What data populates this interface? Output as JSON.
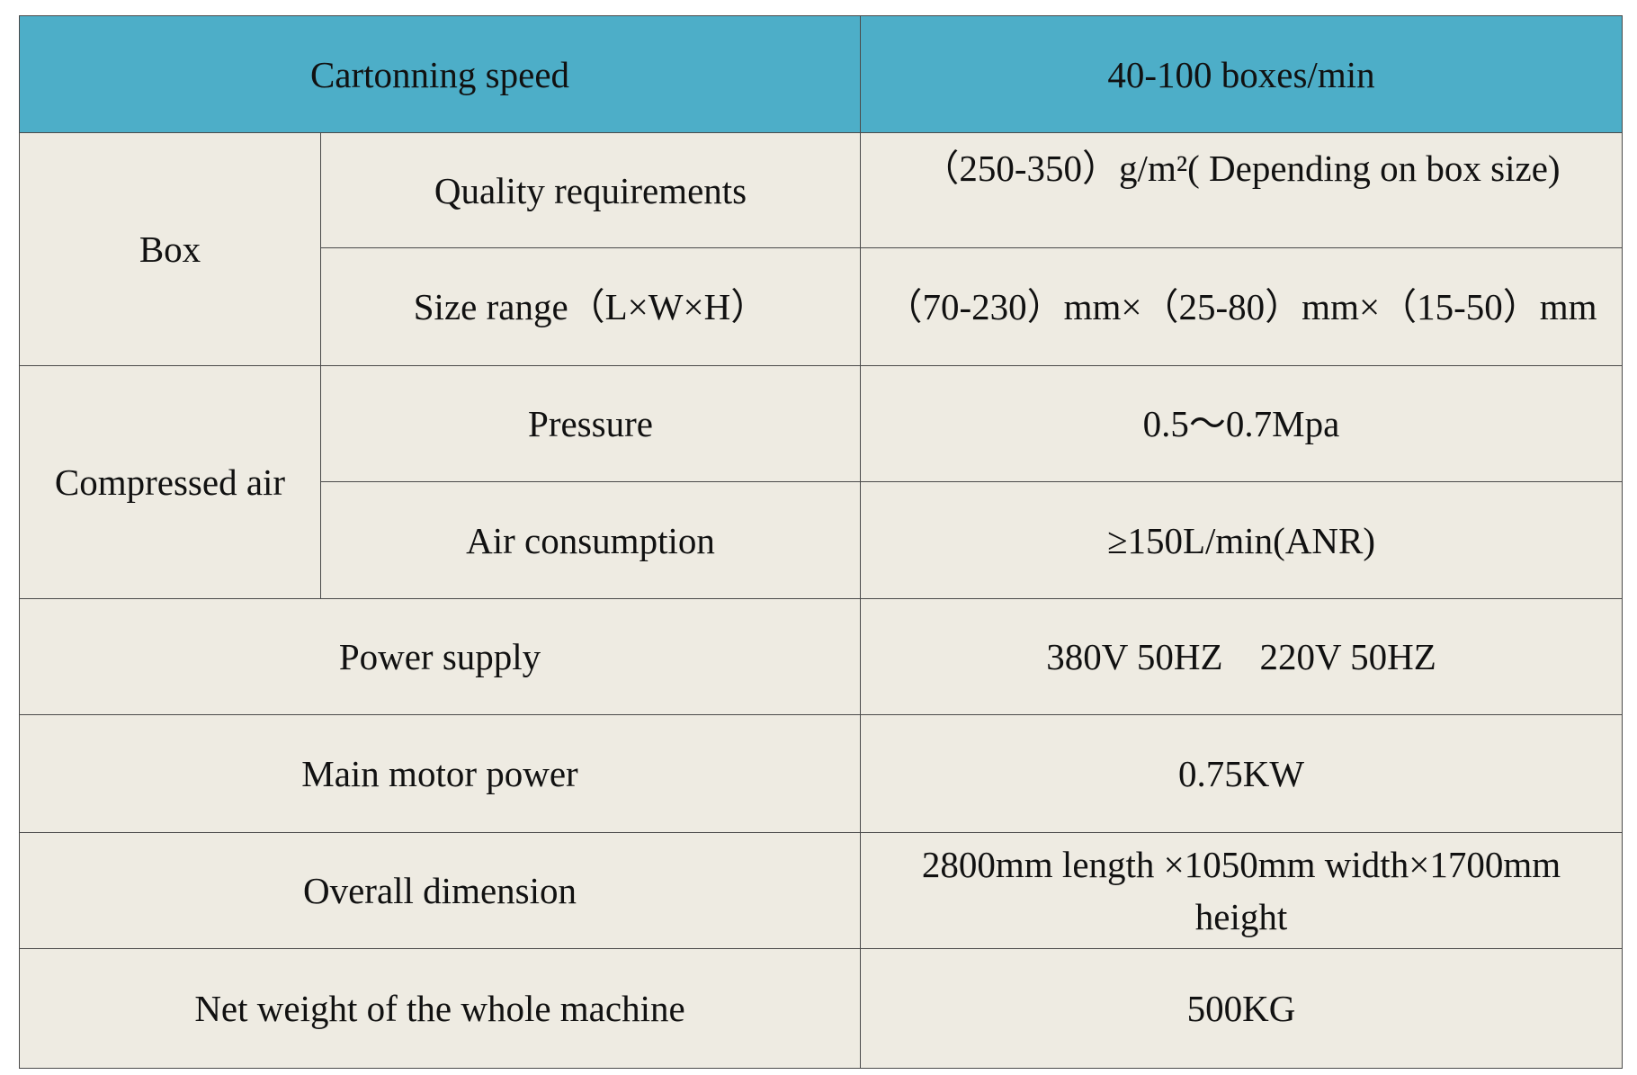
{
  "table": {
    "header": {
      "label": "Cartonning speed",
      "value": "40-100 boxes/min"
    },
    "box": {
      "group_label": "Box",
      "quality": {
        "label": "Quality requirements",
        "value": "（250-350）g/m²( Depending on box size)"
      },
      "size": {
        "label": "Size range（L×W×H）",
        "value": "（70-230）mm×（25-80）mm×（15-50）mm"
      }
    },
    "air": {
      "group_label": "Compressed air",
      "pressure": {
        "label": "Pressure",
        "value": "0.5～0.7Mpa"
      },
      "consumption": {
        "label": "Air consumption",
        "value": "≥150L/min(ANR)"
      }
    },
    "power_supply": {
      "label": "Power supply",
      "value": "380V 50HZ　220V 50HZ"
    },
    "motor": {
      "label": "Main motor power",
      "value": "0.75KW"
    },
    "dimension": {
      "label": "Overall dimension",
      "value": "2800mm length ×1050mm width×1700mm height"
    },
    "weight": {
      "label": "Net weight of the whole machine",
      "value": "500KG"
    }
  },
  "colors": {
    "header_bg": "#4daec8",
    "cell_bg": "#eeebe2",
    "border": "#4a4a4a"
  }
}
